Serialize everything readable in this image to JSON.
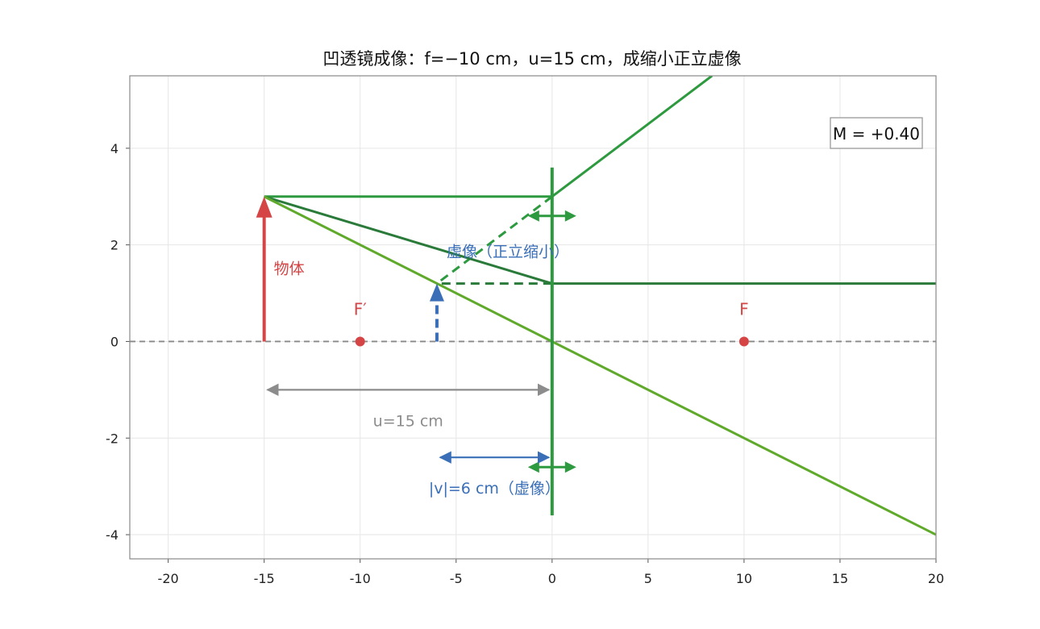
{
  "title": "凹透镜成像：f=−10 cm，u=15 cm，成缩小正立虚像",
  "magnification_label": "M = +0.40",
  "colors": {
    "object": "#d64545",
    "image": "#3a6fb8",
    "lens": "#2e9a40",
    "ray_dark": "#2a7a3a",
    "ray_light": "#5fa92b",
    "axis": "#888888",
    "grid": "#e6e6e6",
    "distance_u": "#8c8c8c"
  },
  "chart_data": {
    "type": "ray-diagram",
    "xlim": [
      -22,
      20
    ],
    "ylim": [
      -4.5,
      5.5
    ],
    "xticks": [
      -20,
      -15,
      -10,
      -5,
      0,
      5,
      10,
      15,
      20
    ],
    "yticks": [
      -4,
      -2,
      0,
      2,
      4
    ],
    "xtick_labels": [
      "-20",
      "-15",
      "-10",
      "-5",
      "0",
      "5",
      "10",
      "15",
      "20"
    ],
    "ytick_labels": [
      "-4",
      "-2",
      "0",
      "2",
      "4"
    ],
    "grid": true,
    "lens": {
      "x": 0,
      "y_range": [
        -3.6,
        3.6
      ],
      "type": "concave"
    },
    "object": {
      "x": -15,
      "height": 3,
      "label": "物体"
    },
    "image": {
      "x": -6,
      "height": 1.2,
      "label": "虚像（正立缩小）"
    },
    "focal_points": [
      {
        "x": -10,
        "label": "F′"
      },
      {
        "x": 10,
        "label": "F"
      }
    ],
    "rays": [
      {
        "name": "parallel-ray",
        "points": [
          [
            -15,
            3
          ],
          [
            0,
            3
          ],
          [
            8.33,
            5.5
          ]
        ],
        "style": "solid",
        "color": "lens"
      },
      {
        "name": "parallel-ray-extension",
        "points": [
          [
            0,
            3
          ],
          [
            -6,
            1.2
          ]
        ],
        "style": "dashed",
        "color": "lens"
      },
      {
        "name": "focal-ray",
        "points": [
          [
            -15,
            3
          ],
          [
            0,
            1.2
          ],
          [
            20,
            1.2
          ]
        ],
        "style": "solid",
        "color": "ray_dark"
      },
      {
        "name": "focal-ray-extension",
        "points": [
          [
            0,
            1.2
          ],
          [
            -6,
            1.2
          ]
        ],
        "style": "dashed",
        "color": "ray_dark"
      },
      {
        "name": "center-ray",
        "points": [
          [
            -15,
            3
          ],
          [
            20,
            -4
          ]
        ],
        "style": "solid",
        "color": "ray_light"
      }
    ],
    "distances": [
      {
        "name": "object-distance",
        "x1": -15,
        "x2": 0,
        "y": -1,
        "label": "u=15 cm",
        "label_y": -1.75,
        "color": "distance_u"
      },
      {
        "name": "image-distance",
        "x1": -6,
        "x2": 0,
        "y": -2.4,
        "label": "|v|=6 cm（虚像）",
        "label_y": -3.15,
        "color": "image"
      }
    ]
  }
}
